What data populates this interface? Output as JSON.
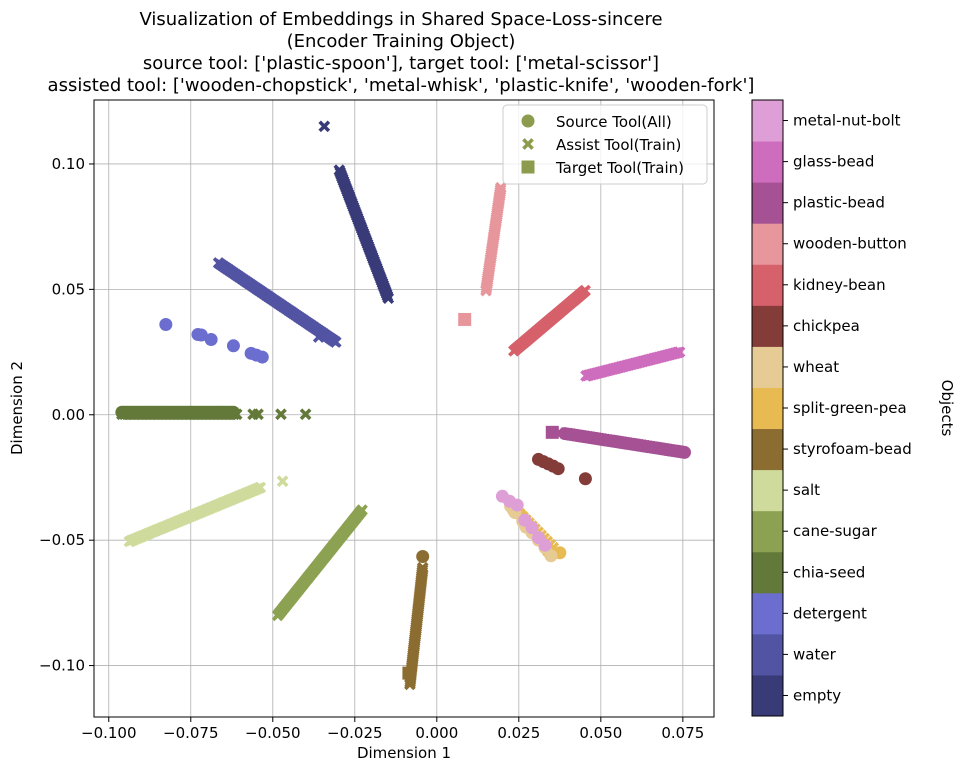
{
  "chart_data": {
    "type": "scatter",
    "title_lines": [
      "Visualization of Embeddings in Shared Space-Loss-sincere",
      "(Encoder Training Object)",
      "source tool: ['plastic-spoon'], target tool: ['metal-scissor']",
      "assisted tool: ['wooden-chopstick', 'metal-whisk', 'plastic-knife', 'wooden-fork']"
    ],
    "xlabel": "Dimension 1",
    "ylabel": "Dimension 2",
    "xlim": [
      -0.1045,
      0.0845
    ],
    "ylim": [
      -0.1205,
      0.1255
    ],
    "xticks": [
      -0.1,
      -0.075,
      -0.05,
      -0.025,
      0.0,
      0.025,
      0.05,
      0.075
    ],
    "xtick_labels": [
      "−0.100",
      "−0.075",
      "−0.050",
      "−0.025",
      "0.000",
      "0.025",
      "0.050",
      "0.075"
    ],
    "yticks": [
      -0.1,
      -0.05,
      0.0,
      0.05,
      0.1
    ],
    "ytick_labels": [
      "−0.10",
      "−0.05",
      "0.00",
      "0.05",
      "0.10"
    ],
    "grid": true,
    "legend_position": "top-right",
    "legend": [
      {
        "label": "Source Tool(All)",
        "marker": "circle"
      },
      {
        "label": "Assist Tool(Train)",
        "marker": "x"
      },
      {
        "label": "Target Tool(Train)",
        "marker": "square"
      }
    ],
    "legend_marker_color": "#8c9c4e",
    "colorbar_label": "Objects",
    "colorbar_categories": [
      "empty",
      "water",
      "detergent",
      "chia-seed",
      "cane-sugar",
      "salt",
      "styrofoam-bead",
      "split-green-pea",
      "wheat",
      "chickpea",
      "kidney-bean",
      "wooden-button",
      "plastic-bead",
      "glass-bead",
      "metal-nut-bolt"
    ],
    "colorbar_colors": [
      "#393b79",
      "#5254a3",
      "#6b6ecf",
      "#637939",
      "#8ca252",
      "#cedb9c",
      "#8c6d31",
      "#e7ba52",
      "#e7cb94",
      "#843c39",
      "#d6616b",
      "#e7969c",
      "#a55194",
      "#ce6dbd",
      "#de9ed6"
    ],
    "series": [
      {
        "name": "empty",
        "color": "#393b79",
        "assist": {
          "from": [
            -0.0297,
            0.0975
          ],
          "to": [
            -0.0148,
            0.0465
          ],
          "count": 60
        },
        "extra_assist": [
          [
            -0.0343,
            0.115
          ]
        ]
      },
      {
        "name": "water",
        "color": "#5254a3",
        "assist": {
          "from": [
            -0.0665,
            0.0605
          ],
          "to": [
            -0.0308,
            0.029
          ],
          "count": 70
        },
        "extra_assist": [
          [
            -0.036,
            0.031
          ]
        ]
      },
      {
        "name": "detergent",
        "color": "#6b6ecf",
        "source": [
          [
            -0.0826,
            0.036
          ],
          [
            -0.0728,
            0.032
          ],
          [
            -0.0718,
            0.0318
          ],
          [
            -0.0688,
            0.03
          ],
          [
            -0.062,
            0.0275
          ],
          [
            -0.0566,
            0.0245
          ],
          [
            -0.055,
            0.0238
          ],
          [
            -0.0532,
            0.023
          ]
        ]
      },
      {
        "name": "chia-seed",
        "color": "#637939",
        "source_line": {
          "from": [
            -0.096,
            0.001
          ],
          "to": [
            -0.062,
            0.001
          ],
          "count": 46
        },
        "assist": {
          "from": [
            -0.096,
            0.0002
          ],
          "to": [
            -0.061,
            0.0002
          ],
          "count": 44
        },
        "extra_assist": [
          [
            -0.056,
            0.0002
          ],
          [
            -0.0545,
            0.0002
          ],
          [
            -0.0475,
            0.0002
          ],
          [
            -0.04,
            0.0002
          ]
        ]
      },
      {
        "name": "cane-sugar",
        "color": "#8ca252",
        "assist": {
          "from": [
            -0.0485,
            -0.08
          ],
          "to": [
            -0.0228,
            -0.038
          ],
          "count": 70
        }
      },
      {
        "name": "salt",
        "color": "#cedb9c",
        "assist": {
          "from": [
            -0.0937,
            -0.0505
          ],
          "to": [
            -0.0538,
            -0.029
          ],
          "count": 70
        },
        "extra_assist": [
          [
            -0.047,
            -0.0265
          ]
        ]
      },
      {
        "name": "styrofoam-bead",
        "color": "#8c6d31",
        "source": [
          [
            -0.0043,
            -0.0565
          ]
        ],
        "assist": {
          "from": [
            -0.0082,
            -0.1075
          ],
          "to": [
            -0.0043,
            -0.061
          ],
          "count": 60
        },
        "target": [
          [
            -0.0085,
            -0.103
          ]
        ]
      },
      {
        "name": "split-green-pea",
        "color": "#e7ba52",
        "source": [
          [
            0.0234,
            -0.038
          ],
          [
            0.026,
            -0.0405
          ],
          [
            0.0285,
            -0.045
          ],
          [
            0.03,
            -0.0475
          ],
          [
            0.0318,
            -0.05
          ],
          [
            0.034,
            -0.0545
          ],
          [
            0.0375,
            -0.055
          ]
        ],
        "assist": {
          "from": [
            0.0235,
            -0.037
          ],
          "to": [
            0.0355,
            -0.053
          ],
          "count": 14
        }
      },
      {
        "name": "wheat",
        "color": "#e7cb94",
        "source": [
          [
            0.0225,
            -0.0365
          ],
          [
            0.0238,
            -0.039
          ],
          [
            0.0262,
            -0.0425
          ],
          [
            0.0272,
            -0.0448
          ],
          [
            0.029,
            -0.047
          ],
          [
            0.031,
            -0.05
          ],
          [
            0.033,
            -0.053
          ],
          [
            0.0348,
            -0.0562
          ]
        ]
      },
      {
        "name": "chickpea",
        "color": "#843c39",
        "source": [
          [
            0.031,
            -0.0178
          ],
          [
            0.0325,
            -0.0187
          ],
          [
            0.034,
            -0.0196
          ],
          [
            0.0355,
            -0.0205
          ],
          [
            0.037,
            -0.0215
          ],
          [
            0.0453,
            -0.0255
          ]
        ]
      },
      {
        "name": "kidney-bean",
        "color": "#d6616b",
        "assist": {
          "from": [
            0.0235,
            0.0255
          ],
          "to": [
            0.0452,
            0.0495
          ],
          "count": 70
        }
      },
      {
        "name": "wooden-button",
        "color": "#e7969c",
        "assist": {
          "from": [
            0.015,
            0.0495
          ],
          "to": [
            0.0195,
            0.0905
          ],
          "count": 50
        },
        "target": [
          [
            0.0085,
            0.038
          ]
        ]
      },
      {
        "name": "plastic-bead",
        "color": "#a55194",
        "source_line": {
          "from": [
            0.039,
            -0.0075
          ],
          "to": [
            0.0755,
            -0.015
          ],
          "count": 40
        },
        "assist": {
          "from": [
            0.04,
            -0.0075
          ],
          "to": [
            0.074,
            -0.0145
          ],
          "count": 40
        },
        "target": [
          [
            0.0352,
            -0.007
          ]
        ],
        "extra_assist": [
          [
            0.0355,
            -0.007
          ],
          [
            0.0372,
            -0.0072
          ]
        ]
      },
      {
        "name": "glass-bead",
        "color": "#ce6dbd",
        "assist": {
          "from": [
            0.0455,
            0.0155
          ],
          "to": [
            0.074,
            0.025
          ],
          "count": 60
        }
      },
      {
        "name": "metal-nut-bolt",
        "color": "#de9ed6",
        "source": [
          [
            0.02,
            -0.0325
          ],
          [
            0.0222,
            -0.0345
          ],
          [
            0.0245,
            -0.036
          ],
          [
            0.0268,
            -0.042
          ],
          [
            0.029,
            -0.045
          ],
          [
            0.031,
            -0.049
          ],
          [
            0.033,
            -0.052
          ]
        ]
      }
    ]
  }
}
